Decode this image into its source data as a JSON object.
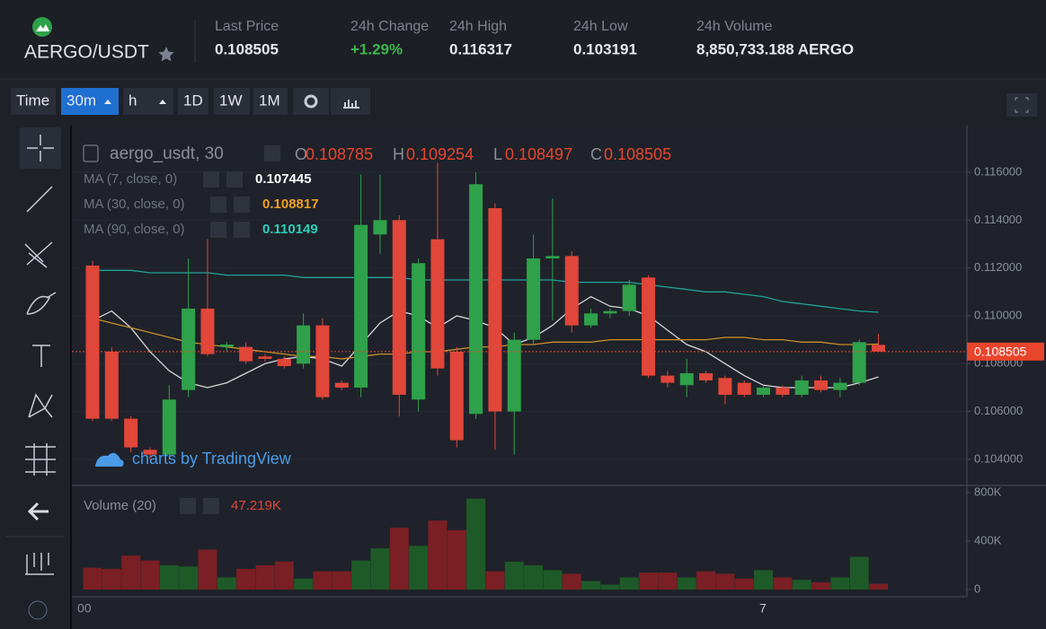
{
  "header": {
    "pair": "AERGO/USDT",
    "stats": [
      {
        "label": "Last Price",
        "value": "0.108505"
      },
      {
        "label": "24h Change",
        "value": "+1.29%"
      },
      {
        "label": "24h High",
        "value": "0.116317"
      },
      {
        "label": "24h Low",
        "value": "0.103191"
      },
      {
        "label": "24h Volume",
        "value": "8,850,733.188 AERGO"
      }
    ]
  },
  "toolbar": {
    "buttons": [
      "Time",
      "30m",
      "h",
      "1D",
      "1W",
      "1M"
    ]
  },
  "chart": {
    "type": "candlestick",
    "symbol": "aergo_usdt, 30",
    "ohlc_letters": [
      "O",
      "H",
      "L",
      "C"
    ],
    "watermark": "charts by TradingView",
    "time_labels": [
      "00",
      "7"
    ],
    "up_color": "#2fa14a",
    "down_color": "#e0463a",
    "volume_up_color": "#1e5a28",
    "volume_down_color": "#7a1f24",
    "open": [
      0.1121,
      0.1085,
      0.1057,
      0.1044,
      0.1042,
      0.1069,
      0.1103,
      0.1087,
      0.1087,
      0.1083,
      0.1082,
      0.108,
      0.1096,
      0.1072,
      0.107,
      0.1134,
      0.114,
      0.1065,
      0.1132,
      0.1085,
      0.1059,
      0.1145,
      0.106,
      0.109,
      0.1124,
      0.1125,
      0.1096,
      0.1101,
      0.1102,
      0.1116,
      0.1075,
      0.1071,
      0.1076,
      0.1074,
      0.1072,
      0.1067,
      0.107,
      0.1067,
      0.1073,
      0.1069,
      0.1072,
      0.108785
    ],
    "high": [
      0.1123,
      0.1087,
      0.1058,
      0.1045,
      0.1071,
      0.1124,
      0.1132,
      0.1089,
      0.1089,
      0.1084,
      0.1083,
      0.1101,
      0.1099,
      0.1073,
      0.1159,
      0.1159,
      0.1142,
      0.1124,
      0.1164,
      0.1087,
      0.116,
      0.1147,
      0.1093,
      0.1134,
      0.1149,
      0.1127,
      0.1103,
      0.1103,
      0.1115,
      0.1117,
      0.1077,
      0.1082,
      0.1077,
      0.1075,
      0.1073,
      0.1071,
      0.1071,
      0.1075,
      0.1075,
      0.1074,
      0.109,
      0.109254
    ],
    "low": [
      0.1056,
      0.1056,
      0.1043,
      0.104,
      0.104,
      0.1066,
      0.1083,
      0.1085,
      0.108,
      0.1081,
      0.1078,
      0.1078,
      0.1065,
      0.1069,
      0.1066,
      0.1126,
      0.1058,
      0.106,
      0.1075,
      0.1045,
      0.1057,
      0.1044,
      0.1042,
      0.1088,
      0.1098,
      0.1093,
      0.1095,
      0.1099,
      0.11,
      0.1074,
      0.107,
      0.1066,
      0.1072,
      0.1063,
      0.1066,
      0.1066,
      0.1066,
      0.1066,
      0.1068,
      0.1066,
      0.1071,
      0.108497
    ],
    "close": [
      0.1057,
      0.1057,
      0.1045,
      0.1042,
      0.1065,
      0.1103,
      0.1084,
      0.1088,
      0.1081,
      0.1082,
      0.1079,
      0.1096,
      0.1066,
      0.107,
      0.1138,
      0.114,
      0.1067,
      0.1122,
      0.1078,
      0.1048,
      0.1155,
      0.106,
      0.109,
      0.1124,
      0.1125,
      0.1096,
      0.1101,
      0.1102,
      0.1113,
      0.1075,
      0.1072,
      0.1076,
      0.1073,
      0.1067,
      0.1067,
      0.107,
      0.1067,
      0.1073,
      0.1069,
      0.1072,
      0.1089,
      0.108505
    ],
    "ma": [
      {
        "name": "MA (7, close, 0)",
        "color": "#d8d8d8",
        "values": [
          0.1098,
          0.1102,
          0.1095,
          0.1085,
          0.1077,
          0.1072,
          0.107,
          0.1072,
          0.1076,
          0.108,
          0.1082,
          0.1083,
          0.1082,
          0.1079,
          0.1088,
          0.1097,
          0.1102,
          0.11,
          0.1095,
          0.11,
          0.1098,
          0.1095,
          0.1088,
          0.1091,
          0.1096,
          0.1103,
          0.1108,
          0.1104,
          0.1103,
          0.11,
          0.1094,
          0.1088,
          0.1085,
          0.108,
          0.1075,
          0.1071,
          0.107,
          0.107,
          0.107,
          0.107,
          0.1072,
          0.107445
        ]
      },
      {
        "name": "MA (30, close, 0)",
        "color": "#c8902a",
        "values": [
          0.1099,
          0.1097,
          0.1095,
          0.1093,
          0.1091,
          0.1089,
          0.1088,
          0.1087,
          0.1086,
          0.1085,
          0.1084,
          0.1083,
          0.1083,
          0.1082,
          0.1083,
          0.1084,
          0.1084,
          0.1085,
          0.1085,
          0.1086,
          0.1087,
          0.1087,
          0.1088,
          0.1088,
          0.1089,
          0.1089,
          0.1089,
          0.109,
          0.109,
          0.109,
          0.109,
          0.109,
          0.109,
          0.1091,
          0.1091,
          0.109,
          0.109,
          0.1089,
          0.1089,
          0.1088,
          0.1088,
          0.108817
        ]
      },
      {
        "name": "MA (90, close, 0)",
        "color": "#1fa596",
        "values": [
          0.1119,
          0.1119,
          0.1119,
          0.1118,
          0.1118,
          0.1118,
          0.1118,
          0.1117,
          0.1117,
          0.1117,
          0.1117,
          0.1116,
          0.1116,
          0.1116,
          0.1116,
          0.1116,
          0.1116,
          0.1115,
          0.1115,
          0.1115,
          0.1115,
          0.1115,
          0.1115,
          0.1115,
          0.1115,
          0.1114,
          0.1114,
          0.1114,
          0.1114,
          0.1113,
          0.1112,
          0.1111,
          0.111,
          0.111,
          0.1109,
          0.1108,
          0.1106,
          0.1105,
          0.1104,
          0.1103,
          0.1102,
          0.110149
        ]
      }
    ],
    "ylim": [
      0.10291,
      0.11795
    ],
    "yticks": [
      {
        "value": 0.104,
        "label": "0.104000"
      },
      {
        "value": 0.106,
        "label": "0.106000"
      },
      {
        "value": 0.108,
        "label": "0.108000"
      },
      {
        "value": 0.11,
        "label": "0.110000"
      },
      {
        "value": 0.112,
        "label": "0.112000"
      },
      {
        "value": 0.114,
        "label": "0.114000"
      },
      {
        "value": 0.116,
        "label": "0.116000"
      }
    ],
    "volume_name": "Volume (20)",
    "volume_label": "47.219K",
    "volumes": [
      180000,
      170000,
      280000,
      240000,
      200000,
      190000,
      330000,
      100000,
      170000,
      200000,
      230000,
      90000,
      150000,
      150000,
      240000,
      340000,
      510000,
      360000,
      570000,
      490000,
      750000,
      150000,
      230000,
      200000,
      160000,
      130000,
      70000,
      40000,
      100000,
      140000,
      140000,
      100000,
      150000,
      130000,
      90000,
      160000,
      100000,
      80000,
      60000,
      100000,
      270000,
      47219
    ],
    "vlim": [
      0,
      800000
    ],
    "vticks": [
      0,
      {
        "value": 400000,
        "label": "400K"
      },
      {
        "value": 800000,
        "label": "800K"
      }
    ]
  }
}
